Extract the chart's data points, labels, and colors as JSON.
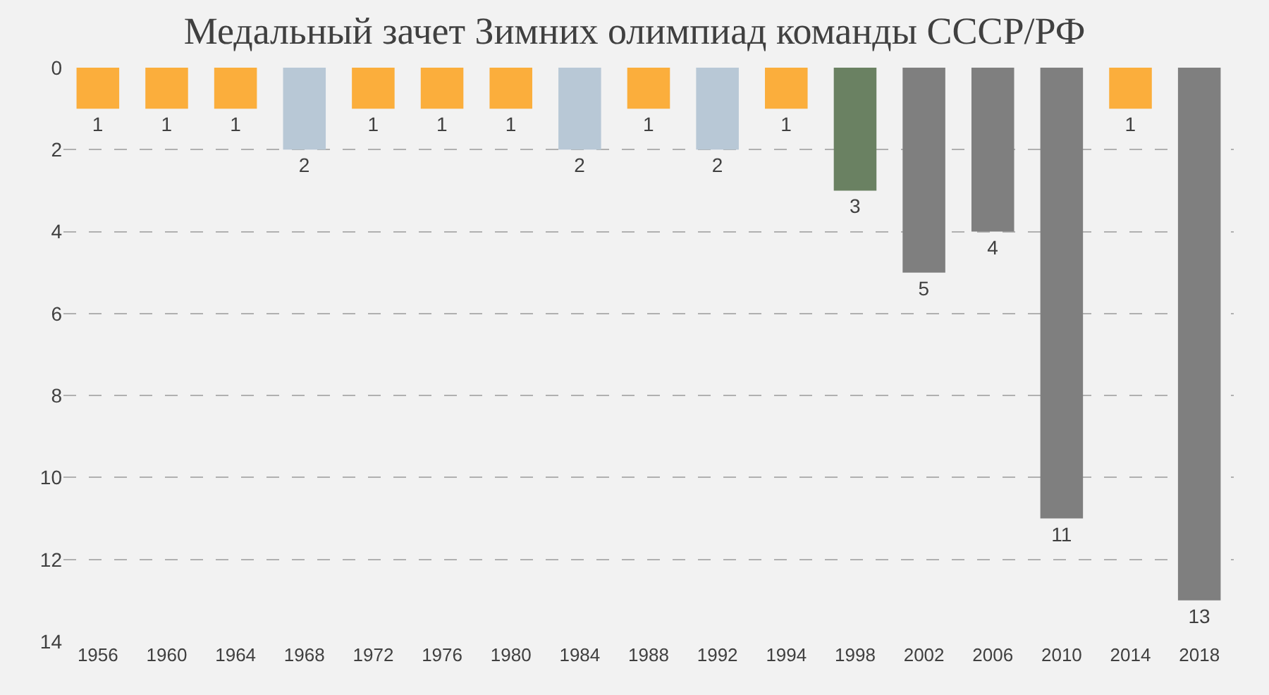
{
  "chart_data": {
    "type": "bar",
    "title": "Медальный зачет Зимних олимпиад команды СССР/РФ",
    "categories": [
      "1956",
      "1960",
      "1964",
      "1968",
      "1972",
      "1976",
      "1980",
      "1984",
      "1988",
      "1992",
      "1994",
      "1998",
      "2002",
      "2006",
      "2010",
      "2014",
      "2018"
    ],
    "values": [
      1,
      1,
      1,
      2,
      1,
      1,
      1,
      2,
      1,
      2,
      1,
      3,
      5,
      4,
      11,
      1,
      13
    ],
    "colors": [
      "#fbae3c",
      "#fbae3c",
      "#fbae3c",
      "#b8c8d6",
      "#fbae3c",
      "#fbae3c",
      "#fbae3c",
      "#b8c8d6",
      "#fbae3c",
      "#b8c8d6",
      "#fbae3c",
      "#6a8162",
      "#7f7f7f",
      "#7f7f7f",
      "#7f7f7f",
      "#fbae3c",
      "#7f7f7f"
    ],
    "ylim": [
      14,
      0
    ],
    "yticks": [
      0,
      2,
      4,
      6,
      8,
      10,
      12,
      14
    ],
    "grid": "y",
    "data_labels": true,
    "legend": false
  }
}
